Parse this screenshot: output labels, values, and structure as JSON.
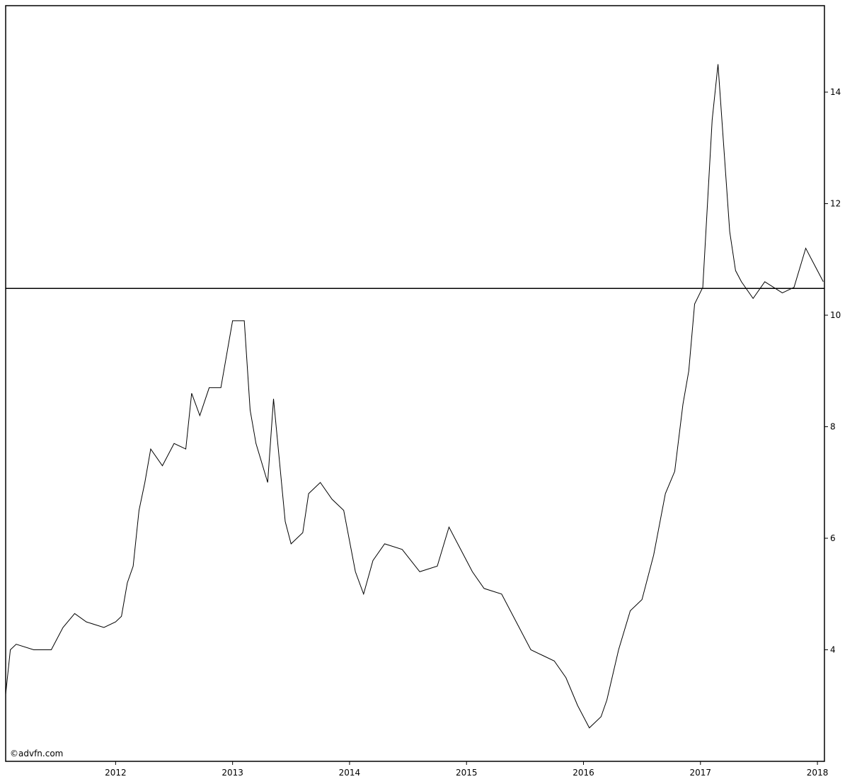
{
  "chart_data": {
    "type": "line",
    "watermark": "©advfn.com",
    "x": [
      2011.06,
      2011.1,
      2011.15,
      2011.3,
      2011.45,
      2011.55,
      2011.65,
      2011.75,
      2011.9,
      2012.0,
      2012.05,
      2012.1,
      2012.15,
      2012.2,
      2012.25,
      2012.3,
      2012.4,
      2012.5,
      2012.6,
      2012.65,
      2012.72,
      2012.8,
      2012.9,
      2013.0,
      2013.1,
      2013.15,
      2013.2,
      2013.3,
      2013.35,
      2013.45,
      2013.5,
      2013.6,
      2013.65,
      2013.75,
      2013.85,
      2013.95,
      2014.05,
      2014.12,
      2014.2,
      2014.3,
      2014.45,
      2014.6,
      2014.75,
      2014.85,
      2014.95,
      2015.05,
      2015.15,
      2015.3,
      2015.45,
      2015.55,
      2015.65,
      2015.75,
      2015.85,
      2015.95,
      2016.05,
      2016.15,
      2016.2,
      2016.3,
      2016.4,
      2016.5,
      2016.6,
      2016.7,
      2016.78,
      2016.85,
      2016.9,
      2016.95,
      2017.02,
      2017.06,
      2017.1,
      2017.15,
      2017.2,
      2017.25,
      2017.3,
      2017.35,
      2017.45,
      2017.55,
      2017.7,
      2017.8,
      2017.9,
      2018.0,
      2018.05
    ],
    "series": [
      {
        "color": "#000000",
        "values": [
          3.2,
          4.0,
          4.1,
          4.0,
          4.0,
          4.4,
          4.65,
          4.5,
          4.4,
          4.5,
          4.6,
          5.2,
          5.5,
          6.5,
          7.0,
          7.6,
          7.3,
          7.7,
          7.6,
          8.6,
          8.2,
          8.7,
          8.7,
          9.9,
          9.9,
          8.3,
          7.7,
          7.0,
          8.5,
          6.3,
          5.9,
          6.1,
          6.8,
          7.0,
          6.7,
          6.5,
          5.4,
          5.0,
          5.6,
          5.9,
          5.8,
          5.4,
          5.5,
          6.2,
          5.8,
          5.4,
          5.1,
          5.0,
          4.4,
          4.0,
          3.9,
          3.8,
          3.5,
          3.0,
          2.6,
          2.8,
          3.1,
          4.0,
          4.7,
          4.9,
          5.7,
          6.8,
          7.2,
          8.4,
          9.0,
          10.2,
          10.5,
          12.0,
          13.5,
          14.5,
          13.0,
          11.5,
          10.8,
          10.6,
          10.3,
          10.6,
          10.4,
          10.5,
          11.2,
          10.8,
          10.6
        ]
      }
    ],
    "hline": 10.48,
    "xlim": [
      2011.06,
      2018.06
    ],
    "xticks": [
      2012,
      2013,
      2014,
      2015,
      2016,
      2017,
      2018
    ],
    "ylim": [
      2,
      15.55
    ],
    "yticks": [
      4,
      6,
      8,
      10,
      12,
      14
    ]
  }
}
